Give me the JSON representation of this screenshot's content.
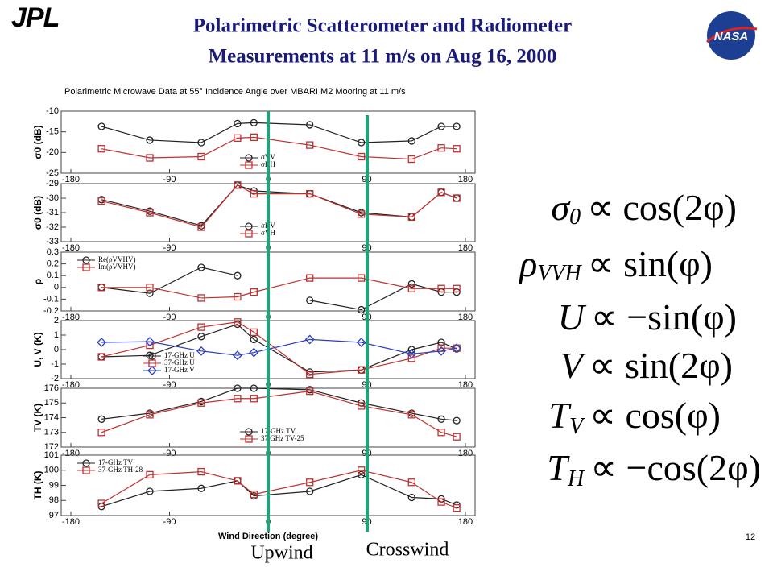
{
  "slide": {
    "title_lines": [
      "Polarimetric Scatterometer and Radiometer",
      "Measurements at 11 m/s on Aug 16, 2000"
    ],
    "logo_left": "JPL",
    "logo_right": "NASA",
    "page_number": "12",
    "annotations": [
      "Upwind",
      "Crosswind"
    ],
    "equations": [
      {
        "symbol": "σ",
        "sub": "0",
        "rhs": "∝ cos(2φ)"
      },
      {
        "symbol": "ρ",
        "sub": "VVH",
        "rhs": "∝ sin(φ)"
      },
      {
        "symbol": "U",
        "sub": "",
        "rhs": "∝ −sin(φ)"
      },
      {
        "symbol": "V",
        "sub": "",
        "rhs": "∝ sin(2φ)"
      },
      {
        "symbol": "T",
        "sub": "V",
        "rhs": "∝ cos(φ)"
      },
      {
        "symbol": "T",
        "sub": "H",
        "rhs": "∝ −cos(2φ)"
      }
    ]
  },
  "chart_data": [
    {
      "type": "line",
      "title": "Polarimetric Microwave Data at 55° Incidence Angle over MBARI M2 Mooring at 11 m/s",
      "ylabel": "σ0 (dB)",
      "legend": "lower-center",
      "x": [
        -152,
        -108,
        -61,
        -28,
        -13,
        38,
        85,
        131,
        158,
        172
      ],
      "xlim": [
        -180,
        180
      ],
      "xticks": [
        -180,
        -90,
        0,
        90,
        180
      ],
      "ylim": [
        -25,
        -10
      ],
      "yticks": [
        -25,
        -20,
        -15,
        -10
      ],
      "series": [
        {
          "name": "σVV",
          "color": "#222222",
          "marker": "circle",
          "values": [
            -13.7,
            -17,
            -17.6,
            -13,
            -12.8,
            -13.3,
            -17.6,
            -17.2,
            -13.7,
            -13.7
          ]
        },
        {
          "name": "σHH",
          "color": "#c03030",
          "marker": "square",
          "values": [
            -19.1,
            -21.3,
            -21,
            -16.5,
            -16.3,
            -18.2,
            -21,
            -21.6,
            -18.9,
            -19.1
          ]
        }
      ]
    },
    {
      "type": "line",
      "ylabel": "σ0 (dB)",
      "legend": "lower-center",
      "x": [
        -152,
        -108,
        -61,
        -28,
        -13,
        38,
        85,
        131,
        158,
        172
      ],
      "xlim": [
        -180,
        180
      ],
      "xticks": [
        -180,
        -90,
        0,
        90,
        180
      ],
      "ylim": [
        -33,
        -29
      ],
      "yticks": [
        -33,
        -32,
        -31,
        -30,
        -29
      ],
      "series": [
        {
          "name": "σHV",
          "color": "#222222",
          "marker": "circle",
          "values": [
            -30.1,
            -30.9,
            -31.9,
            -29.1,
            -29.5,
            -29.7,
            -31,
            -31.3,
            -29.6,
            -30
          ]
        },
        {
          "name": "σVH",
          "color": "#c03030",
          "marker": "square",
          "values": [
            -30.2,
            -31,
            -32,
            -29.1,
            -29.7,
            -29.7,
            -31.1,
            -31.3,
            -29.6,
            -30
          ]
        }
      ]
    },
    {
      "type": "line",
      "ylabel": "ρ",
      "legend": "upper-left",
      "x": [
        -152,
        -108,
        -61,
        -28,
        -13,
        38,
        85,
        131,
        158,
        172
      ],
      "xlim": [
        -180,
        180
      ],
      "xticks": [
        -180,
        -90,
        0,
        90,
        180
      ],
      "ylim": [
        -0.2,
        0.3
      ],
      "yticks": [
        -0.2,
        -0.1,
        0,
        0.1,
        0.2,
        0.3
      ],
      "series": [
        {
          "name": "Re(ρVVHV)",
          "color": "#222222",
          "marker": "circle",
          "values": [
            0,
            -0.05,
            0.17,
            0.1,
            null,
            -0.11,
            -0.19,
            0.03,
            -0.04,
            -0.04
          ]
        },
        {
          "name": "Im(ρVVHV)",
          "color": "#c03030",
          "marker": "square",
          "values": [
            0,
            0,
            -0.09,
            -0.08,
            -0.04,
            0.08,
            0.08,
            -0.01,
            -0.01,
            -0.01
          ]
        }
      ]
    },
    {
      "type": "line",
      "ylabel": "U, V (K)",
      "legend": "lower-left",
      "x": [
        -152,
        -108,
        -61,
        -28,
        -13,
        38,
        85,
        131,
        158,
        172
      ],
      "xlim": [
        -180,
        180
      ],
      "xticks": [
        -180,
        -90,
        0,
        90,
        180
      ],
      "ylim": [
        -2,
        2
      ],
      "yticks": [
        -2,
        -1,
        0,
        1,
        2
      ],
      "series": [
        {
          "name": "17-GHz U",
          "color": "#222222",
          "marker": "circle",
          "values": [
            -0.5,
            -0.4,
            0.9,
            1.75,
            0.7,
            -1.55,
            -1.4,
            0,
            0.5,
            0.05
          ]
        },
        {
          "name": "37-GHz U",
          "color": "#c03030",
          "marker": "square",
          "values": [
            -0.5,
            0.3,
            1.55,
            1.9,
            1.2,
            -1.7,
            -1.4,
            -0.6,
            0.1,
            0.1
          ]
        },
        {
          "name": "17-GHz V",
          "color": "#2b3fc0",
          "marker": "diamond",
          "values": [
            0.5,
            0.55,
            -0.1,
            -0.4,
            -0.2,
            0.7,
            0.5,
            -0.3,
            -0.1,
            0.1
          ]
        }
      ]
    },
    {
      "type": "line",
      "ylabel": "TV (K)",
      "legend": "lower-center",
      "x": [
        -152,
        -108,
        -61,
        -28,
        -13,
        38,
        85,
        131,
        158,
        172
      ],
      "xlim": [
        -180,
        180
      ],
      "xticks": [
        -180,
        -90,
        0,
        90,
        180
      ],
      "ylim": [
        172,
        176
      ],
      "yticks": [
        172,
        173,
        174,
        175,
        176
      ],
      "series": [
        {
          "name": "17-GHz TV",
          "color": "#222222",
          "marker": "circle",
          "values": [
            173.9,
            174.3,
            175.1,
            176,
            176,
            175.9,
            175,
            174.3,
            173.9,
            173.8
          ]
        },
        {
          "name": "37 GHz TV-25",
          "color": "#c03030",
          "marker": "square",
          "values": [
            173,
            174.2,
            175,
            175.3,
            175.3,
            175.8,
            174.8,
            174.2,
            173,
            172.7
          ]
        }
      ]
    },
    {
      "type": "line",
      "ylabel": "TH (K)",
      "legend": "upper-left",
      "xlabel": "Wind Direction (degree)",
      "x": [
        -152,
        -108,
        -61,
        -28,
        -13,
        38,
        85,
        131,
        158,
        172
      ],
      "xlim": [
        -180,
        180
      ],
      "xticks": [
        -180,
        -90,
        0,
        90,
        180
      ],
      "ylim": [
        97,
        101
      ],
      "yticks": [
        97,
        98,
        99,
        100,
        101
      ],
      "series": [
        {
          "name": "17-GHz TV",
          "color": "#222222",
          "marker": "circle",
          "values": [
            97.6,
            98.6,
            98.8,
            99.3,
            98.3,
            98.6,
            99.7,
            98.2,
            98.1,
            97.7
          ]
        },
        {
          "name": "37-GHz TH-28",
          "color": "#c03030",
          "marker": "square",
          "values": [
            97.8,
            99.7,
            99.9,
            99.3,
            98.4,
            99.2,
            100,
            99.2,
            97.9,
            97.5
          ]
        }
      ]
    }
  ]
}
